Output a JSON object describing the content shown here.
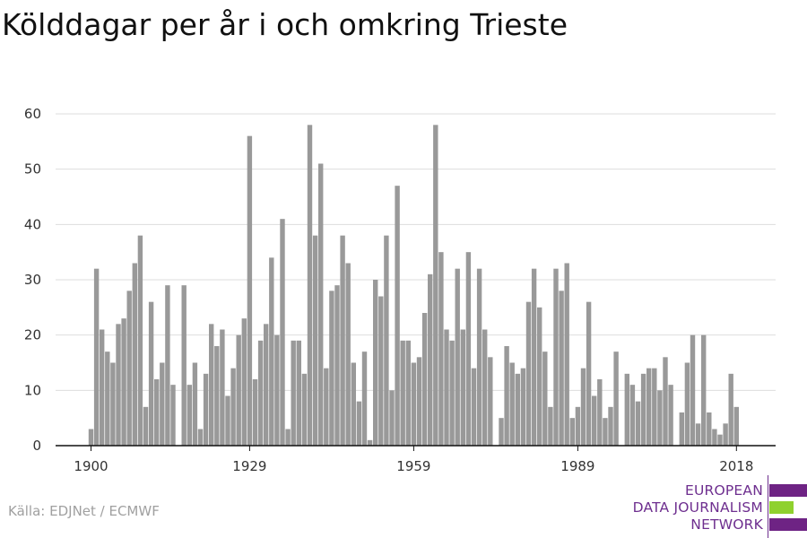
{
  "title": "Kölddagar per år i och omkring Trieste",
  "source": "Källa: EDJNet / ECMWF",
  "logo": {
    "lines": [
      "EUROPEAN",
      "DATA JOURNALISM",
      "NETWORK"
    ],
    "colors": {
      "purple": "#6e2384",
      "green": "#8fd12e"
    }
  },
  "chart_data": {
    "type": "bar",
    "title": "Kölddagar per år i och omkring Trieste",
    "xlabel": "",
    "ylabel": "",
    "x_ticks": [
      1900,
      1929,
      1959,
      1989,
      2018
    ],
    "y_ticks": [
      0,
      10,
      20,
      30,
      40,
      50,
      60
    ],
    "ylim": [
      0,
      62
    ],
    "xlim": [
      1900,
      2018
    ],
    "grid": true,
    "bar_color": "#999999",
    "series": [
      {
        "x": [
          1900,
          1901,
          1902,
          1903,
          1904,
          1905,
          1906,
          1907,
          1908,
          1909,
          1910,
          1911,
          1912,
          1913,
          1914,
          1915,
          1916,
          1917,
          1918,
          1919,
          1920,
          1921,
          1922,
          1923,
          1924,
          1925,
          1926,
          1927,
          1928,
          1929,
          1930,
          1931,
          1932,
          1933,
          1934,
          1935,
          1936,
          1937,
          1938,
          1939,
          1940,
          1941,
          1942,
          1943,
          1944,
          1945,
          1946,
          1947,
          1948,
          1949,
          1950,
          1951,
          1952,
          1953,
          1954,
          1955,
          1956,
          1957,
          1958,
          1959,
          1960,
          1961,
          1962,
          1963,
          1964,
          1965,
          1966,
          1967,
          1968,
          1969,
          1970,
          1971,
          1972,
          1973,
          1974,
          1975,
          1976,
          1977,
          1978,
          1979,
          1980,
          1981,
          1982,
          1983,
          1984,
          1985,
          1986,
          1987,
          1988,
          1989,
          1990,
          1991,
          1992,
          1993,
          1994,
          1995,
          1996,
          1997,
          1998,
          1999,
          2000,
          2001,
          2002,
          2003,
          2004,
          2005,
          2006,
          2007,
          2008,
          2009,
          2010,
          2011,
          2012,
          2013,
          2014,
          2015,
          2016,
          2017,
          2018
        ],
        "values": [
          3,
          32,
          21,
          17,
          15,
          22,
          23,
          28,
          33,
          38,
          7,
          26,
          12,
          15,
          29,
          11,
          0,
          29,
          11,
          15,
          3,
          13,
          22,
          18,
          21,
          9,
          14,
          20,
          23,
          56,
          12,
          19,
          22,
          34,
          20,
          41,
          3,
          19,
          19,
          13,
          58,
          38,
          51,
          14,
          28,
          29,
          38,
          33,
          15,
          8,
          17,
          1,
          30,
          27,
          38,
          10,
          47,
          19,
          19,
          15,
          16,
          24,
          31,
          58,
          35,
          21,
          19,
          32,
          21,
          35,
          14,
          32,
          21,
          16,
          0,
          5,
          18,
          15,
          13,
          14,
          26,
          32,
          25,
          17,
          7,
          32,
          28,
          33,
          5,
          7,
          14,
          26,
          9,
          12,
          5,
          7,
          17,
          0,
          13,
          11,
          8,
          13,
          14,
          14,
          10,
          16,
          11,
          0,
          6,
          15,
          20,
          4,
          20,
          6,
          3,
          2,
          4,
          13,
          7
        ]
      }
    ]
  }
}
